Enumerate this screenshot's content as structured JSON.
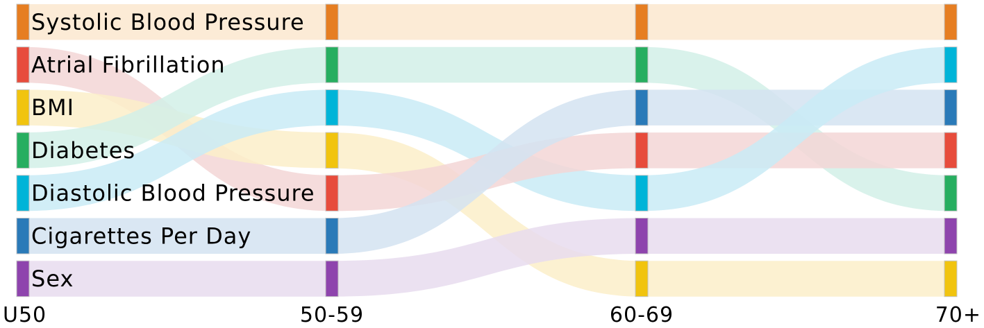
{
  "chart_data": {
    "type": "sankey",
    "title": "",
    "stages": [
      "U50",
      "50-59",
      "60-69",
      "70+"
    ],
    "ranks": [
      [
        "Systolic Blood Pressure",
        "Atrial Fibrillation",
        "BMI",
        "Diabetes",
        "Diastolic Blood Pressure",
        "Cigarettes Per Day",
        "Sex"
      ],
      [
        "Systolic Blood Pressure",
        "Diabetes",
        "Diastolic Blood Pressure",
        "BMI",
        "Atrial Fibrillation",
        "Cigarettes Per Day",
        "Sex"
      ],
      [
        "Systolic Blood Pressure",
        "Diabetes",
        "Cigarettes Per Day",
        "Atrial Fibrillation",
        "Diastolic Blood Pressure",
        "Sex",
        "BMI"
      ],
      [
        "Systolic Blood Pressure",
        "Diastolic Blood Pressure",
        "Cigarettes Per Day",
        "Atrial Fibrillation",
        "Diabetes",
        "Sex",
        "BMI"
      ]
    ],
    "colors": {
      "Systolic Blood Pressure": "#e67e22",
      "Atrial Fibrillation": "#e74c3c",
      "BMI": "#f1c40f",
      "Diabetes": "#27ae60",
      "Diastolic Blood Pressure": "#00b4d8",
      "Cigarettes Per Day": "#2a7ab8",
      "Sex": "#8e44ad"
    },
    "grid": false,
    "legend": "none"
  }
}
